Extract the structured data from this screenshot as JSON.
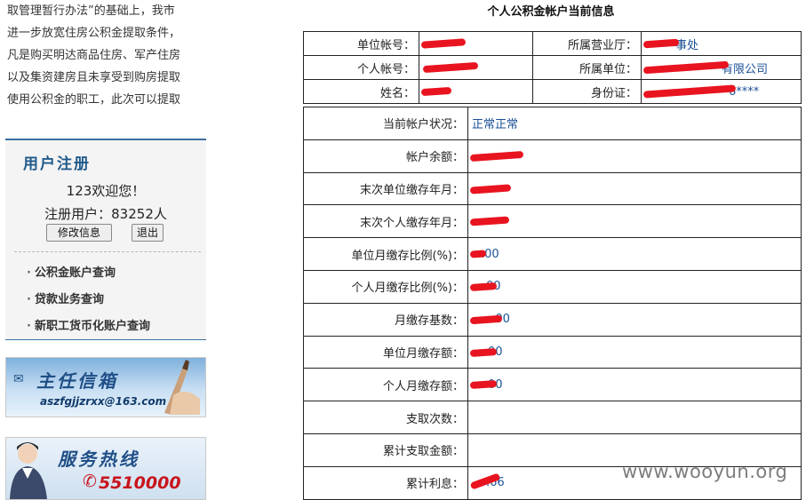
{
  "intro_lines": [
    "取管理暂行办法”的基础上，我市",
    "进一步放宽住房公积金提取条件，",
    "凡是购买明达商品住房、军产住房",
    "以及集资建房且未享受到购房提取",
    "使用公积金的职工，此次可以提取"
  ],
  "register": {
    "title": "用户注册",
    "welcome": "123欢迎您！",
    "user_count": "注册用户：83252人",
    "edit_button": "修改信息",
    "exit_button": "退出"
  },
  "menu": {
    "items": [
      "公积金账户查询",
      "贷款业务查询",
      "新职工货币化账户查询"
    ]
  },
  "banners": {
    "director_mailbox_title": "主任信箱",
    "director_mailbox_email": "aszfgjjzrxx@163.com",
    "hotline_title": "服务热线",
    "hotline_number": "5510000"
  },
  "account": {
    "title": "个人公积金帐户当前信息",
    "unit_account_label": "单位帐号：",
    "unit_account_value": "",
    "business_hall_label": "所属营业厅：",
    "business_hall_value": "事处",
    "personal_account_label": "个人帐号：",
    "personal_account_value": "",
    "unit_label": "所属单位：",
    "unit_value": "有限公司",
    "name_label": "姓名：",
    "name_value": "",
    "id_card_label": "身份证：",
    "id_card_value": "6****",
    "rows": [
      {
        "label": "当前帐户状况：",
        "value": "正常正常"
      },
      {
        "label": "帐户余额：",
        "value": ""
      },
      {
        "label": "末次单位缴存年月：",
        "value": ""
      },
      {
        "label": "末次个人缴存年月：",
        "value": ""
      },
      {
        "label": "单位月缴存比例(%)：",
        "value": ".00"
      },
      {
        "label": "个人月缴存比例(%)：",
        "value": "00"
      },
      {
        "label": "月缴存基数：",
        "value": ":00"
      },
      {
        "label": "单位月缴存额：",
        "value": "00"
      },
      {
        "label": "个人月缴存额：",
        "value": "00"
      },
      {
        "label": "支取次数：",
        "value": ""
      },
      {
        "label": "累计支取金额：",
        "value": ""
      },
      {
        "label": "累计利息：",
        "value": ".66"
      }
    ]
  },
  "watermark": "www.wooyun.org"
}
